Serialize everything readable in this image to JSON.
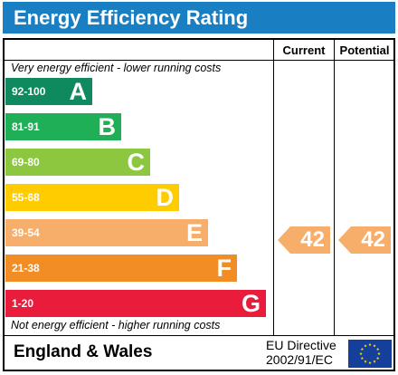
{
  "title": "Energy Efficiency Rating",
  "columns": {
    "current": "Current",
    "potential": "Potential"
  },
  "top_note": "Very energy efficient - lower running costs",
  "bottom_note": "Not energy efficient - higher running costs",
  "bands": [
    {
      "range": "92-100",
      "letter": "A",
      "color": "#0f8a5e"
    },
    {
      "range": "81-91",
      "letter": "B",
      "color": "#1fb057"
    },
    {
      "range": "69-80",
      "letter": "C",
      "color": "#8dc63f"
    },
    {
      "range": "55-68",
      "letter": "D",
      "color": "#ffcc00"
    },
    {
      "range": "39-54",
      "letter": "E",
      "color": "#f7ae6a"
    },
    {
      "range": "21-38",
      "letter": "F",
      "color": "#f28d25"
    },
    {
      "range": "1-20",
      "letter": "G",
      "color": "#ea1c3b"
    }
  ],
  "current_rating": {
    "value": "42",
    "color": "#f7ae6a"
  },
  "potential_rating": {
    "value": "42",
    "color": "#f7ae6a"
  },
  "footer": {
    "country": "England & Wales",
    "directive_line1": "EU Directive",
    "directive_line2": "2002/91/EC"
  },
  "icons": {
    "flag": "eu-flag-icon"
  }
}
